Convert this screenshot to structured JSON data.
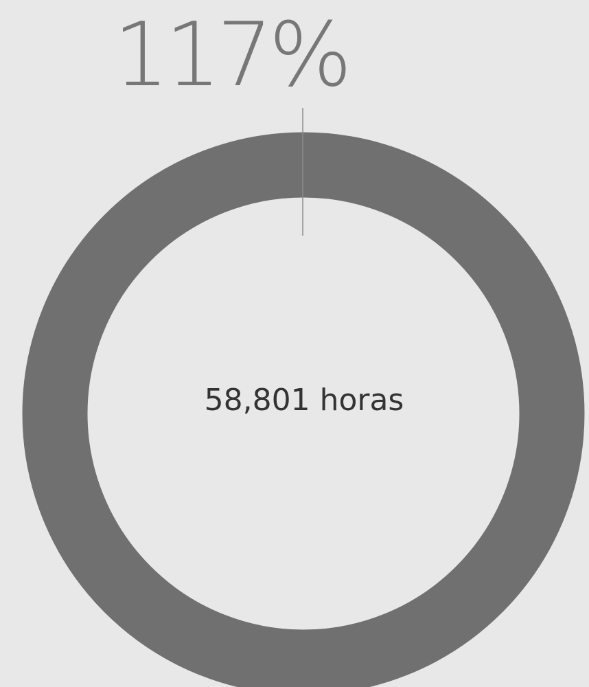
{
  "chart_data": {
    "type": "progress-ring",
    "values": [
      117
    ],
    "value_labels": [
      "117%"
    ],
    "center_text": "58,801 horas",
    "color": "#707070"
  }
}
